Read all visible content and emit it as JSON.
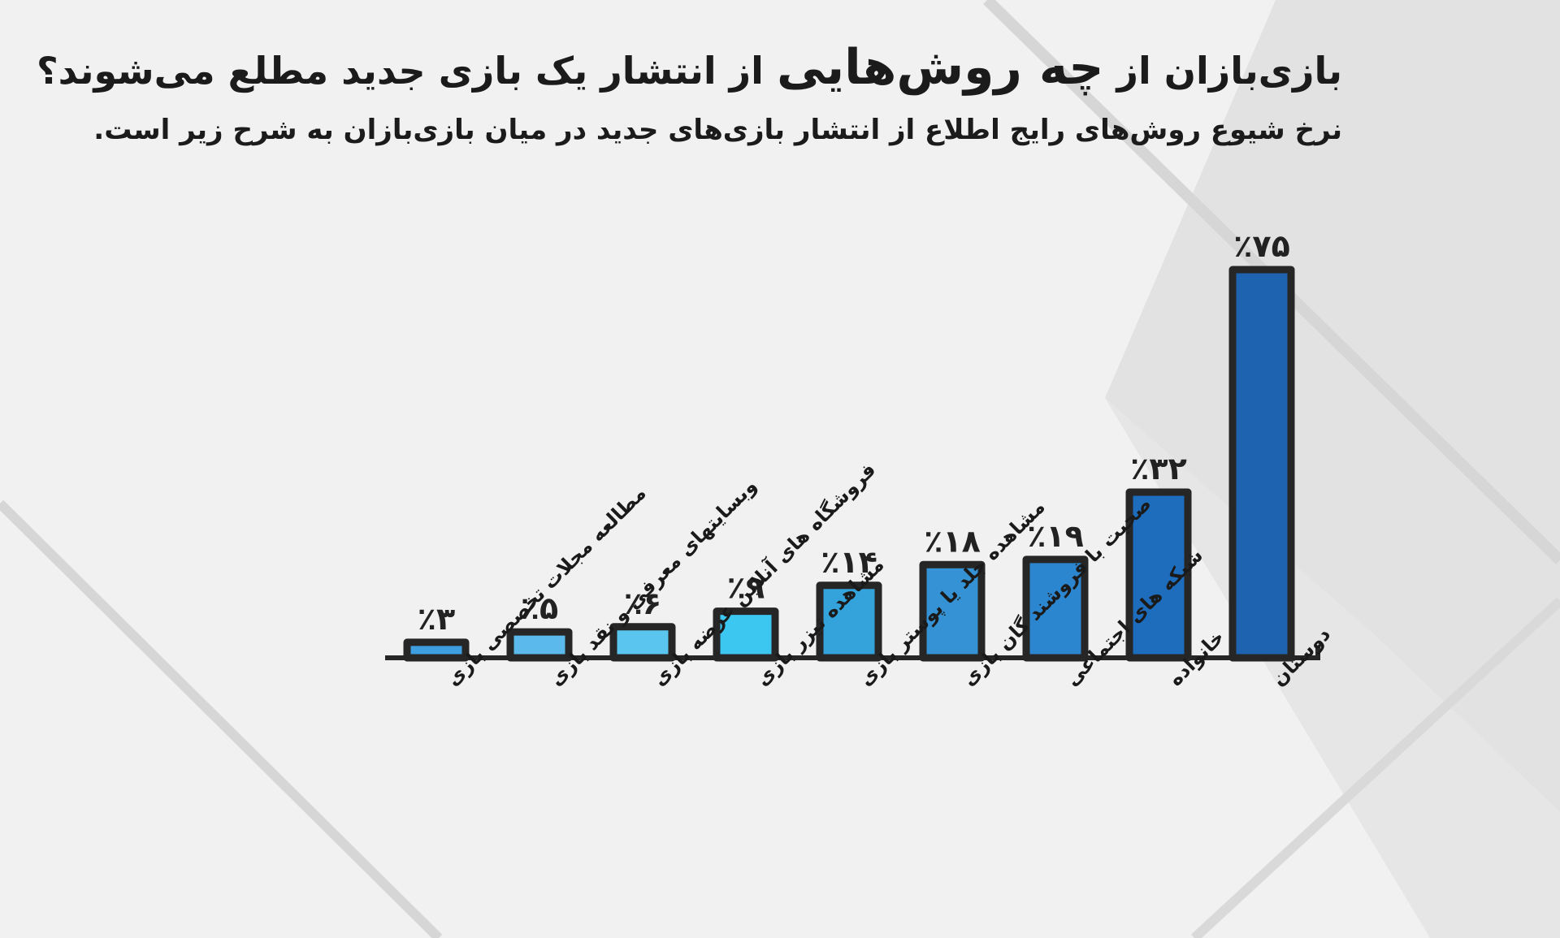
{
  "header": {
    "title_part1": "بازی‌بازان از",
    "title_emphasis": "چه روش‌هایی",
    "title_part2": "از انتشار یک بازی جدید مطلع می‌شوند؟",
    "subtitle": "نرخ شیوع روش‌های رایج اطلاع از انتشار بازی‌های جدید در میان بازی‌بازان به شرح زیر است."
  },
  "chart_data": {
    "type": "bar",
    "title": "بازی‌بازان از چه روش‌هایی از انتشار یک بازی جدید مطلع می‌شوند؟",
    "categories": [
      "دوستان",
      "خانواده",
      "شبکه های اجتماعی",
      "صحبت با فروشند گان بازی",
      "مشاهده جلد یا پوستر بازی",
      "مشاهده تیزر بازی",
      "فروشگاه های آنلاین عرضه بازی",
      "وبسایتهای معرفی و نقد بازی",
      "مطالعه مجلات تخصصی بازی"
    ],
    "values": [
      75,
      32,
      19,
      18,
      14,
      9,
      6,
      5,
      3
    ],
    "value_labels": [
      "٪۷۵",
      "٪۳۲",
      "٪۱۹",
      "٪۱۸",
      "٪۱۴",
      "٪۹",
      "٪۶",
      "٪۵",
      "٪۳"
    ],
    "colors": [
      "#1e63b0",
      "#1e6cbc",
      "#2c86cf",
      "#3592d4",
      "#34a3dc",
      "#3cc7f1",
      "#5ac6ef",
      "#5bb9eb",
      "#3f9ee0"
    ],
    "ylim": [
      0,
      75
    ],
    "grid": false,
    "legend": "none"
  }
}
